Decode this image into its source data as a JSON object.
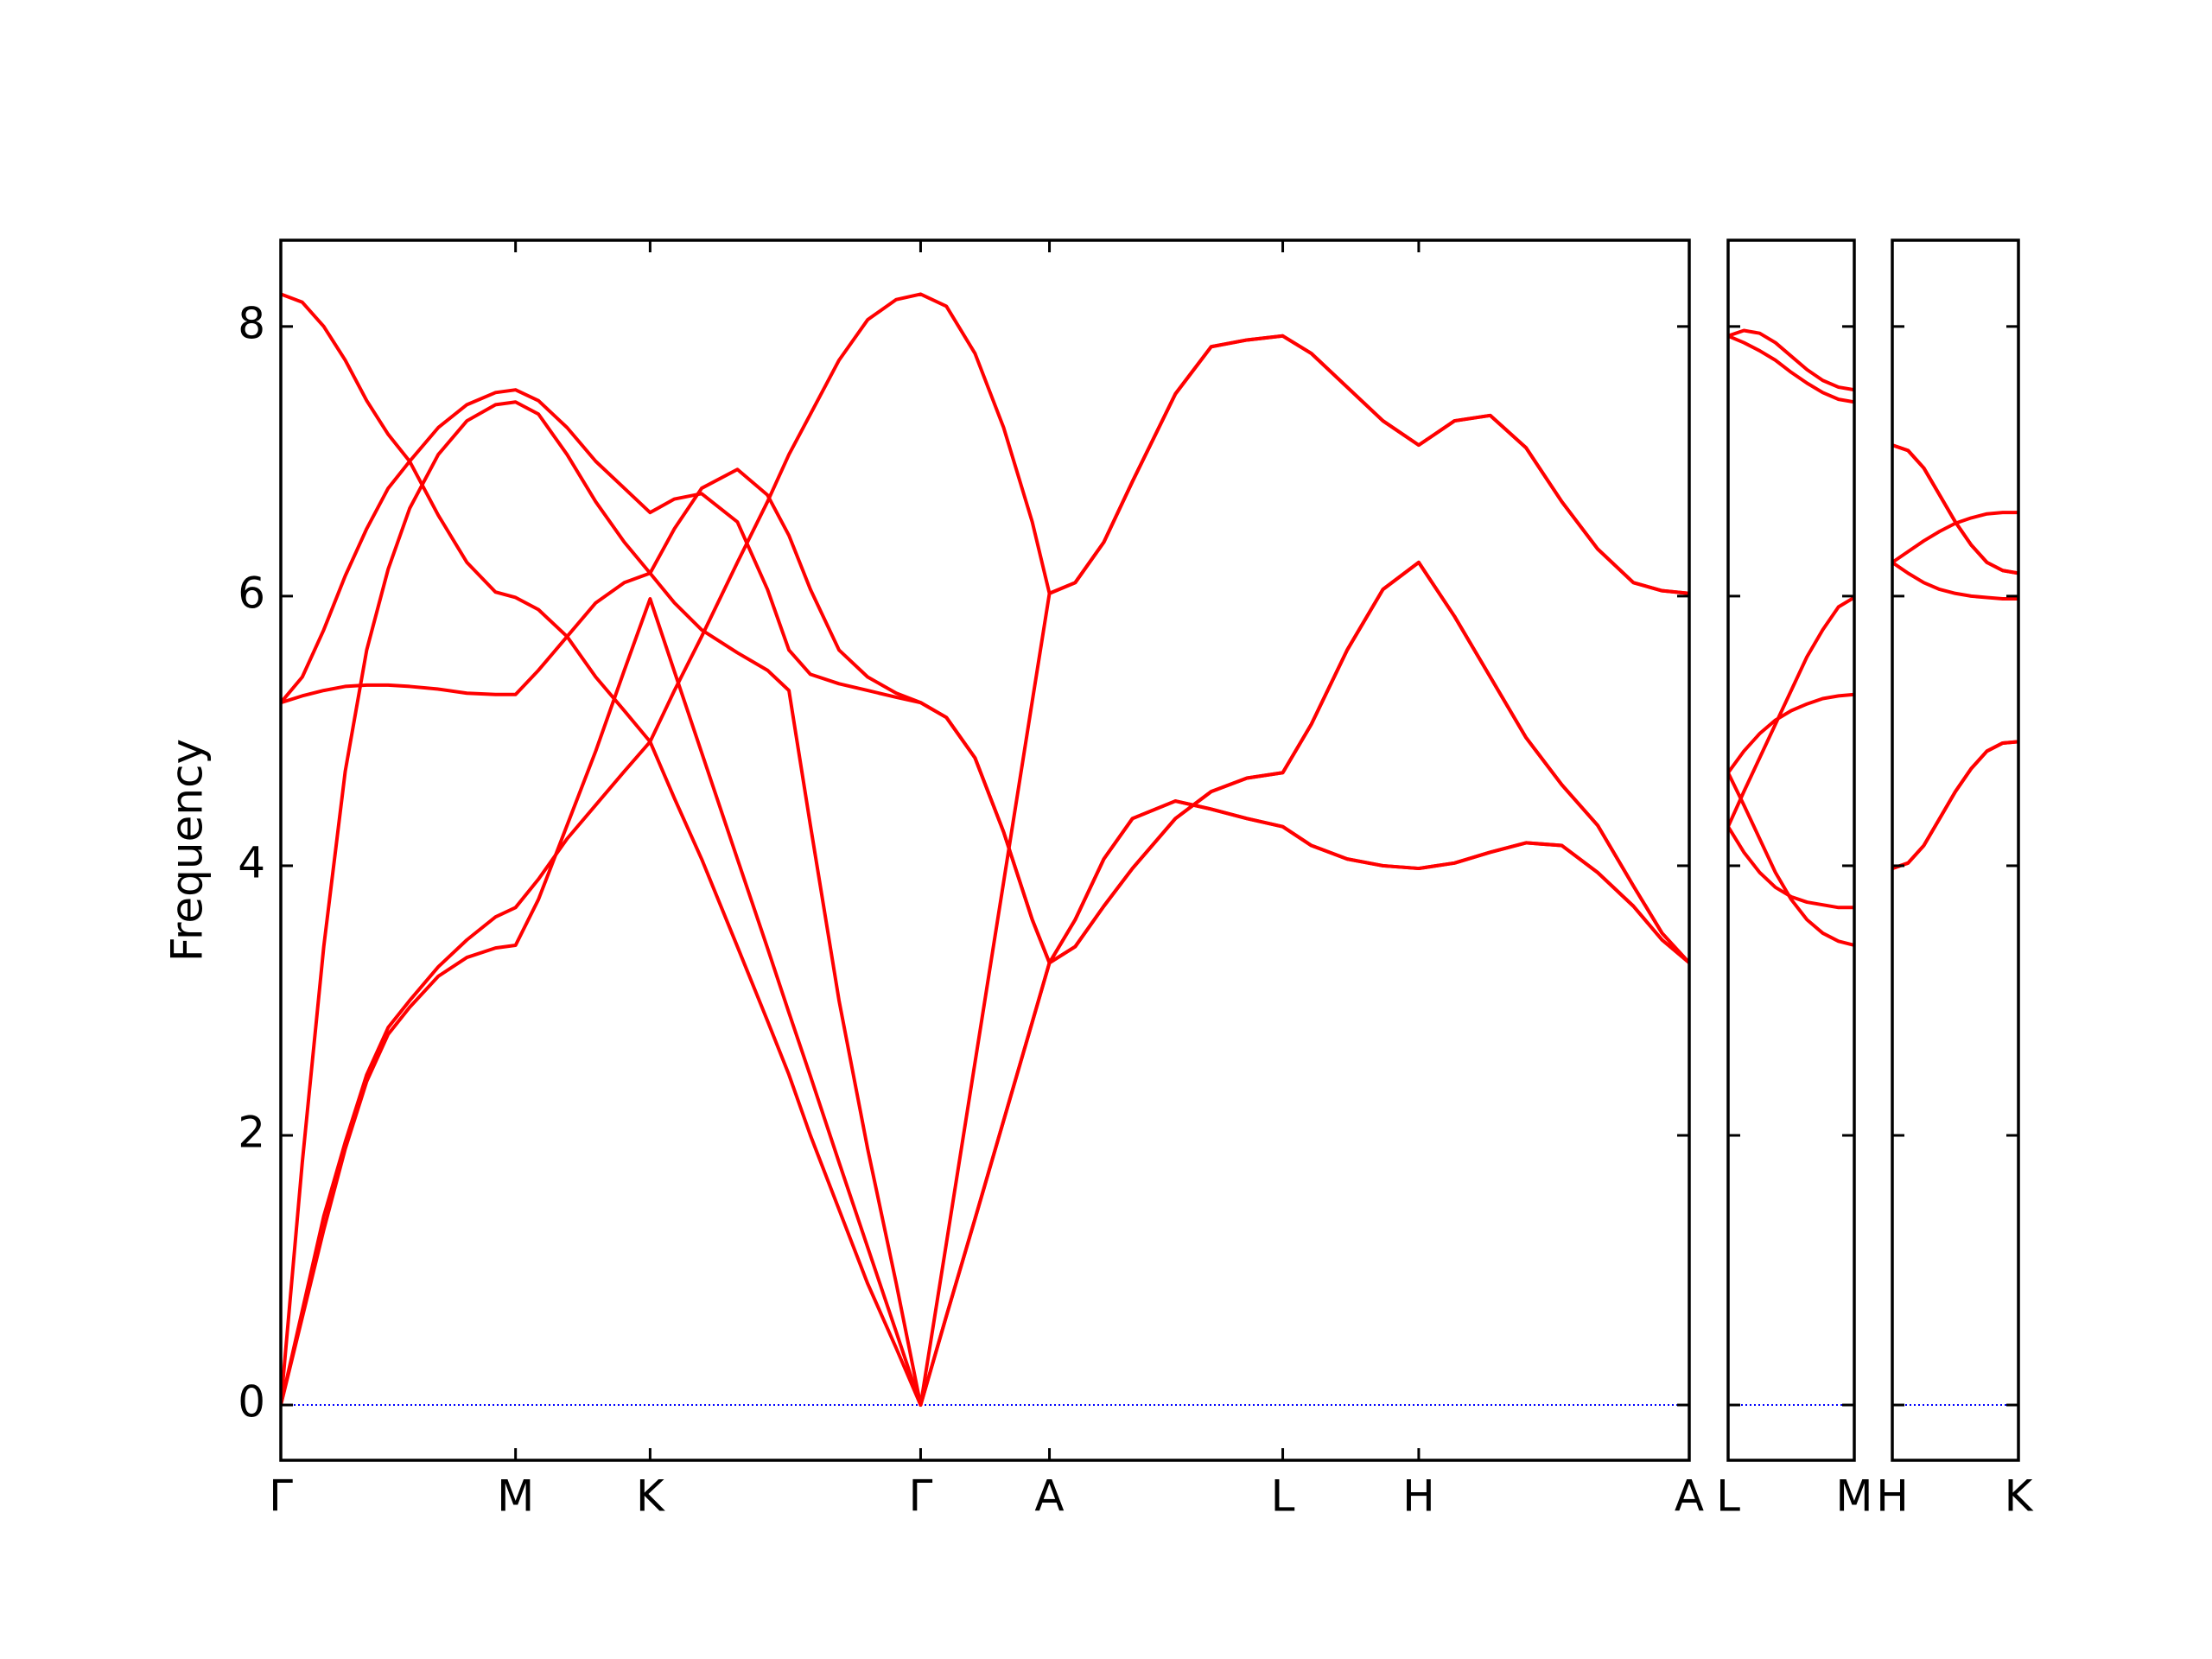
{
  "chart_data": [
    {
      "type": "line",
      "ylabel": "Frequency",
      "x": [
        0,
        0.15,
        0.3,
        0.45,
        0.6,
        0.75,
        0.9,
        1.1,
        1.3,
        1.5,
        1.64,
        1.8,
        2.0,
        2.2,
        2.4,
        2.58,
        2.75,
        2.94,
        3.19,
        3.4,
        3.55,
        3.7,
        3.9,
        4.1,
        4.3,
        4.47,
        4.65,
        4.85,
        5.05,
        5.25,
        5.37,
        5.55,
        5.75,
        5.95,
        6.25,
        6.5,
        6.75,
        7.0,
        7.2,
        7.45,
        7.7,
        7.95,
        8.2,
        8.45,
        8.7,
        8.95,
        9.2,
        9.45,
        9.65,
        9.84
      ],
      "xlim": [
        0,
        9.84
      ],
      "ylim": [
        -0.41,
        8.64
      ],
      "yticks": [
        0,
        2,
        4,
        6,
        8
      ],
      "show_ytick_labels": true,
      "xticks": [
        {
          "value": 0,
          "label": "Γ"
        },
        {
          "value": 1.64,
          "label": "M"
        },
        {
          "value": 2.58,
          "label": "K"
        },
        {
          "value": 4.47,
          "label": "Γ"
        },
        {
          "value": 5.37,
          "label": "A"
        },
        {
          "value": 7.0,
          "label": "L"
        },
        {
          "value": 7.95,
          "label": "H"
        },
        {
          "value": 9.84,
          "label": "A"
        }
      ],
      "hline": 0,
      "hline_color": "#0000ff",
      "series": [
        {
          "color": "#ff0000",
          "values": [
            8.24,
            8.18,
            8.0,
            7.75,
            7.45,
            7.2,
            7.0,
            6.6,
            6.25,
            6.03,
            5.99,
            5.9,
            5.7,
            5.4,
            5.15,
            4.92,
            4.5,
            4.05,
            3.4,
            2.85,
            2.45,
            2.0,
            1.45,
            0.9,
            0.42,
            0,
            0.66,
            1.38,
            2.11,
            2.84,
            3.28,
            3.4,
            3.7,
            3.98,
            4.35,
            4.55,
            4.65,
            4.69,
            5.05,
            5.6,
            6.05,
            6.25,
            5.85,
            5.4,
            4.95,
            4.6,
            4.3,
            3.85,
            3.5,
            3.28
          ]
        },
        {
          "color": "#ff0000",
          "values": [
            5.21,
            5.4,
            5.75,
            6.15,
            6.5,
            6.8,
            7.0,
            7.25,
            7.42,
            7.51,
            7.53,
            7.45,
            7.25,
            7.0,
            6.8,
            6.62,
            6.72,
            6.76,
            6.55,
            6.05,
            5.6,
            5.42,
            5.35,
            5.3,
            5.25,
            5.21,
            5.1,
            4.8,
            4.25,
            3.6,
            3.28,
            3.6,
            4.05,
            4.35,
            4.48,
            4.42,
            4.35,
            4.29,
            4.15,
            4.05,
            4.0,
            3.98,
            4.02,
            4.1,
            4.17,
            4.15,
            3.95,
            3.7,
            3.45,
            3.28
          ]
        },
        {
          "color": "#ff0000",
          "values": [
            5.21,
            5.26,
            5.3,
            5.33,
            5.34,
            5.34,
            5.33,
            5.31,
            5.28,
            5.27,
            5.27,
            5.45,
            5.7,
            5.95,
            6.1,
            6.17,
            6.5,
            6.8,
            6.94,
            6.75,
            6.45,
            6.05,
            5.6,
            5.4,
            5.28,
            5.21,
            5.1,
            4.8,
            4.25,
            3.6,
            3.28,
            3.6,
            4.05,
            4.35,
            4.48,
            4.42,
            4.35,
            4.29,
            4.15,
            4.05,
            4.0,
            3.98,
            4.02,
            4.1,
            4.17,
            4.15,
            3.95,
            3.7,
            3.45,
            3.28
          ]
        },
        {
          "color": "#ff0000",
          "values": [
            0,
            1.8,
            3.4,
            4.7,
            5.6,
            6.2,
            6.65,
            7.05,
            7.3,
            7.42,
            7.44,
            7.35,
            7.05,
            6.7,
            6.4,
            6.17,
            5.95,
            5.75,
            5.58,
            5.45,
            5.3,
            4.3,
            3.0,
            1.9,
            0.9,
            0,
            1.2,
            2.54,
            3.88,
            5.22,
            6.02,
            6.1,
            6.4,
            6.85,
            7.5,
            7.85,
            7.9,
            7.93,
            7.8,
            7.55,
            7.3,
            7.12,
            7.3,
            7.34,
            7.1,
            6.7,
            6.35,
            6.1,
            6.04,
            6.02
          ]
        },
        {
          "color": "#ff0000",
          "values": [
            0,
            0.7,
            1.4,
            1.95,
            2.45,
            2.8,
            3.0,
            3.25,
            3.45,
            3.62,
            3.69,
            3.9,
            4.2,
            4.45,
            4.7,
            4.92,
            5.3,
            5.7,
            6.25,
            6.7,
            7.05,
            7.35,
            7.75,
            8.05,
            8.2,
            8.24,
            8.15,
            7.8,
            7.25,
            6.55,
            6.02,
            6.1,
            6.4,
            6.85,
            7.5,
            7.85,
            7.9,
            7.93,
            7.8,
            7.55,
            7.3,
            7.12,
            7.3,
            7.34,
            7.1,
            6.7,
            6.35,
            6.1,
            6.04,
            6.02
          ]
        },
        {
          "color": "#ff0000",
          "values": [
            0,
            0.65,
            1.3,
            1.9,
            2.4,
            2.75,
            2.95,
            3.18,
            3.32,
            3.39,
            3.41,
            3.75,
            4.3,
            4.85,
            5.45,
            5.98,
            5.44,
            4.84,
            4.05,
            3.39,
            2.91,
            2.44,
            1.8,
            1.17,
            0.54,
            0,
            0.66,
            1.38,
            2.11,
            2.84,
            3.28,
            3.4,
            3.7,
            3.98,
            4.35,
            4.55,
            4.65,
            4.69,
            5.05,
            5.6,
            6.05,
            6.25,
            5.85,
            5.4,
            4.95,
            4.6,
            4.3,
            3.85,
            3.5,
            3.28
          ]
        }
      ]
    },
    {
      "type": "line",
      "x": [
        0,
        0.11,
        0.22,
        0.33,
        0.44,
        0.55,
        0.66,
        0.77,
        0.88
      ],
      "xlim": [
        0,
        0.88
      ],
      "ylim": [
        -0.41,
        8.64
      ],
      "yticks": [
        0,
        2,
        4,
        6,
        8
      ],
      "show_ytick_labels": false,
      "xticks": [
        {
          "value": 0,
          "label": "L"
        },
        {
          "value": 0.88,
          "label": "M"
        }
      ],
      "hline": 0,
      "hline_color": "#0000ff",
      "series": [
        {
          "color": "#ff0000",
          "values": [
            7.93,
            7.97,
            7.95,
            7.88,
            7.78,
            7.68,
            7.6,
            7.55,
            7.53
          ]
        },
        {
          "color": "#ff0000",
          "values": [
            7.93,
            7.88,
            7.82,
            7.75,
            7.66,
            7.58,
            7.51,
            7.46,
            7.44
          ]
        },
        {
          "color": "#ff0000",
          "values": [
            4.69,
            4.85,
            4.98,
            5.08,
            5.15,
            5.2,
            5.24,
            5.26,
            5.27
          ]
        },
        {
          "color": "#ff0000",
          "values": [
            4.29,
            4.55,
            4.8,
            5.05,
            5.3,
            5.55,
            5.75,
            5.92,
            5.99
          ]
        },
        {
          "color": "#ff0000",
          "values": [
            4.69,
            4.45,
            4.2,
            3.95,
            3.75,
            3.6,
            3.5,
            3.44,
            3.41
          ]
        },
        {
          "color": "#ff0000",
          "values": [
            4.29,
            4.1,
            3.95,
            3.84,
            3.77,
            3.73,
            3.71,
            3.69,
            3.69
          ]
        }
      ]
    },
    {
      "type": "line",
      "x": [
        0,
        0.11,
        0.22,
        0.33,
        0.44,
        0.55,
        0.66,
        0.77,
        0.88
      ],
      "xlim": [
        0,
        0.88
      ],
      "ylim": [
        -0.41,
        8.64
      ],
      "yticks": [
        0,
        2,
        4,
        6,
        8
      ],
      "show_ytick_labels": false,
      "xticks": [
        {
          "value": 0,
          "label": "H"
        },
        {
          "value": 0.88,
          "label": "K"
        }
      ],
      "hline": 0,
      "hline_color": "#0000ff",
      "series": [
        {
          "color": "#ff0000",
          "values": [
            7.12,
            7.08,
            6.95,
            6.75,
            6.55,
            6.38,
            6.25,
            6.19,
            6.17
          ]
        },
        {
          "color": "#ff0000",
          "values": [
            7.12,
            7.08,
            6.95,
            6.75,
            6.55,
            6.38,
            6.25,
            6.19,
            6.17
          ]
        },
        {
          "color": "#ff0000",
          "values": [
            6.25,
            6.33,
            6.41,
            6.48,
            6.54,
            6.58,
            6.61,
            6.62,
            6.62
          ]
        },
        {
          "color": "#ff0000",
          "values": [
            6.25,
            6.17,
            6.1,
            6.05,
            6.02,
            6.0,
            5.99,
            5.98,
            5.98
          ]
        },
        {
          "color": "#ff0000",
          "values": [
            3.98,
            4.02,
            4.15,
            4.35,
            4.55,
            4.72,
            4.85,
            4.91,
            4.92
          ]
        },
        {
          "color": "#ff0000",
          "values": [
            3.98,
            4.02,
            4.15,
            4.35,
            4.55,
            4.72,
            4.85,
            4.91,
            4.92
          ]
        }
      ]
    }
  ]
}
